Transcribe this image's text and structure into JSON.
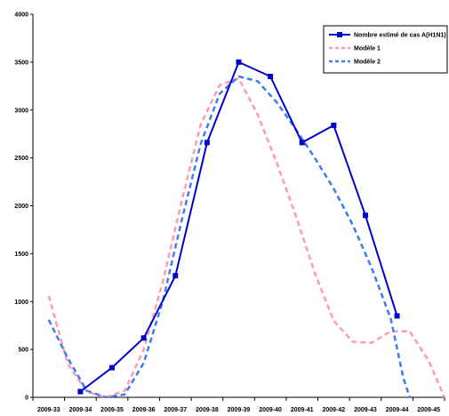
{
  "chart_data": {
    "type": "line",
    "categories": [
      "2009-33",
      "2009-34",
      "2009-35",
      "2009-36",
      "2009-37",
      "2009-38",
      "2009-39",
      "2009-40",
      "2009-41",
      "2009-42",
      "2009-43",
      "2009-44",
      "2009-45"
    ],
    "ylim": [
      0,
      4000
    ],
    "yticks": [
      "0",
      "500",
      "1000",
      "1500",
      "2000",
      "2500",
      "3000",
      "3500",
      "4000"
    ],
    "ytick_values": [
      0,
      500,
      1000,
      1500,
      2000,
      2500,
      3000,
      3500,
      4000
    ],
    "grid": false,
    "legend_position": "top-right",
    "series": [
      {
        "name": "Nombre estimé de cas A(H1N1)",
        "style": "solid",
        "color": "#0000CC",
        "points": [
          [
            1,
            60
          ],
          [
            2,
            310
          ],
          [
            3,
            620
          ],
          [
            4,
            1270
          ],
          [
            5,
            2660
          ],
          [
            6,
            3500
          ],
          [
            7,
            3350
          ],
          [
            8,
            2660
          ],
          [
            9,
            2840
          ],
          [
            10,
            1900
          ],
          [
            11,
            850
          ]
        ]
      },
      {
        "name": "Modèle 1",
        "style": "dashed",
        "color": "#FF9AB4",
        "points": [
          [
            0,
            1060
          ],
          [
            0.6,
            350
          ],
          [
            1.2,
            60
          ],
          [
            1.8,
            0
          ],
          [
            2.4,
            70
          ],
          [
            3,
            500
          ],
          [
            3.6,
            1200
          ],
          [
            4.2,
            2050
          ],
          [
            4.8,
            2850
          ],
          [
            5.4,
            3260
          ],
          [
            6,
            3330
          ],
          [
            6.6,
            2950
          ],
          [
            7.2,
            2450
          ],
          [
            7.8,
            1900
          ],
          [
            8.4,
            1300
          ],
          [
            9,
            800
          ],
          [
            9.6,
            580
          ],
          [
            10.2,
            570
          ],
          [
            10.8,
            690
          ],
          [
            11.4,
            690
          ],
          [
            12,
            380
          ],
          [
            12.5,
            0
          ]
        ]
      },
      {
        "name": "Modèle 2",
        "style": "dashed",
        "color": "#3C7CF0",
        "points": [
          [
            0,
            810
          ],
          [
            0.6,
            410
          ],
          [
            1.2,
            70
          ],
          [
            1.8,
            0
          ],
          [
            2.4,
            30
          ],
          [
            3,
            360
          ],
          [
            3.6,
            1000
          ],
          [
            4.2,
            1850
          ],
          [
            4.8,
            2650
          ],
          [
            5.4,
            3170
          ],
          [
            6,
            3350
          ],
          [
            6.6,
            3300
          ],
          [
            7.2,
            3080
          ],
          [
            7.8,
            2800
          ],
          [
            8.4,
            2500
          ],
          [
            9,
            2180
          ],
          [
            9.6,
            1800
          ],
          [
            10.2,
            1350
          ],
          [
            10.8,
            820
          ],
          [
            11.2,
            200
          ],
          [
            11.4,
            0
          ]
        ]
      }
    ]
  }
}
